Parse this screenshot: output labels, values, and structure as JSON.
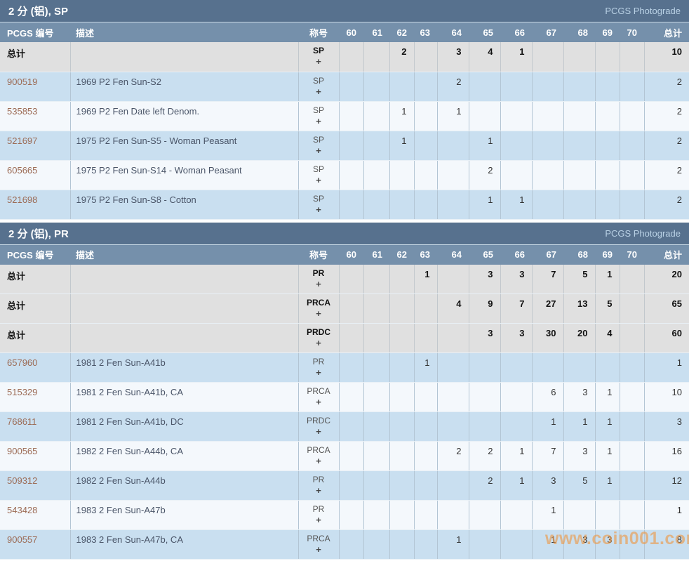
{
  "columns": {
    "pcgs": "PCGS 编号",
    "desc": "描述",
    "grade": "称号",
    "grades": [
      "60",
      "61",
      "62",
      "63",
      "64",
      "65",
      "66",
      "67",
      "68",
      "69",
      "70"
    ],
    "total": "总计"
  },
  "photograde_label": "PCGS Photograde",
  "watermark": "www.coin001.com",
  "colors": {
    "section_header_bg": "#57718e",
    "column_header_bg": "#7590ab",
    "total_row_bg": "#e0e0e0",
    "row_blue_bg": "#c9dff0",
    "row_white_bg": "#f4f8fc",
    "pcgs_link": "#9c6b55",
    "watermark": "#ed9845"
  },
  "sections": [
    {
      "title": "2 分 (铝), SP",
      "rows": [
        {
          "pcgs": "总计",
          "total_row": true,
          "desc": "",
          "grade": "SP",
          "plus": "+",
          "values": [
            "",
            "",
            "2",
            "",
            "3",
            "4",
            "1",
            "",
            "",
            "",
            ""
          ],
          "total": "10"
        },
        {
          "pcgs": "900519",
          "total_row": false,
          "desc": "1969 P2 Fen Sun-S2",
          "grade": "SP",
          "plus": "+",
          "values": [
            "",
            "",
            "",
            "",
            "2",
            "",
            "",
            "",
            "",
            "",
            ""
          ],
          "total": "2"
        },
        {
          "pcgs": "535853",
          "total_row": false,
          "desc": "1969 P2 Fen Date left Denom.",
          "grade": "SP",
          "plus": "+",
          "values": [
            "",
            "",
            "1",
            "",
            "1",
            "",
            "",
            "",
            "",
            "",
            ""
          ],
          "total": "2"
        },
        {
          "pcgs": "521697",
          "total_row": false,
          "desc": "1975 P2 Fen Sun-S5 - Woman Peasant",
          "grade": "SP",
          "plus": "+",
          "values": [
            "",
            "",
            "1",
            "",
            "",
            "1",
            "",
            "",
            "",
            "",
            ""
          ],
          "total": "2"
        },
        {
          "pcgs": "605665",
          "total_row": false,
          "desc": "1975 P2 Fen Sun-S14 - Woman Peasant",
          "grade": "SP",
          "plus": "+",
          "values": [
            "",
            "",
            "",
            "",
            "",
            "2",
            "",
            "",
            "",
            "",
            ""
          ],
          "total": "2"
        },
        {
          "pcgs": "521698",
          "total_row": false,
          "desc": "1975 P2 Fen Sun-S8 - Cotton",
          "grade": "SP",
          "plus": "+",
          "values": [
            "",
            "",
            "",
            "",
            "",
            "1",
            "1",
            "",
            "",
            "",
            ""
          ],
          "total": "2"
        }
      ]
    },
    {
      "title": "2 分 (铝), PR",
      "rows": [
        {
          "pcgs": "总计",
          "total_row": true,
          "desc": "",
          "grade": "PR",
          "plus": "+",
          "values": [
            "",
            "",
            "",
            "1",
            "",
            "3",
            "3",
            "7",
            "5",
            "1",
            ""
          ],
          "total": "20"
        },
        {
          "pcgs": "总计",
          "total_row": true,
          "desc": "",
          "grade": "PRCA",
          "plus": "+",
          "values": [
            "",
            "",
            "",
            "",
            "4",
            "9",
            "7",
            "27",
            "13",
            "5",
            ""
          ],
          "total": "65"
        },
        {
          "pcgs": "总计",
          "total_row": true,
          "desc": "",
          "grade": "PRDC",
          "plus": "+",
          "values": [
            "",
            "",
            "",
            "",
            "",
            "3",
            "3",
            "30",
            "20",
            "4",
            ""
          ],
          "total": "60"
        },
        {
          "pcgs": "657960",
          "total_row": false,
          "desc": "1981 2 Fen Sun-A41b",
          "grade": "PR",
          "plus": "+",
          "values": [
            "",
            "",
            "",
            "1",
            "",
            "",
            "",
            "",
            "",
            "",
            ""
          ],
          "total": "1"
        },
        {
          "pcgs": "515329",
          "total_row": false,
          "desc": "1981 2 Fen Sun-A41b, CA",
          "grade": "PRCA",
          "plus": "+",
          "values": [
            "",
            "",
            "",
            "",
            "",
            "",
            "",
            "6",
            "3",
            "1",
            ""
          ],
          "total": "10"
        },
        {
          "pcgs": "768611",
          "total_row": false,
          "desc": "1981 2 Fen Sun-A41b, DC",
          "grade": "PRDC",
          "plus": "+",
          "values": [
            "",
            "",
            "",
            "",
            "",
            "",
            "",
            "1",
            "1",
            "1",
            ""
          ],
          "total": "3"
        },
        {
          "pcgs": "900565",
          "total_row": false,
          "desc": "1982 2 Fen Sun-A44b, CA",
          "grade": "PRCA",
          "plus": "+",
          "values": [
            "",
            "",
            "",
            "",
            "2",
            "2",
            "1",
            "7",
            "3",
            "1",
            ""
          ],
          "total": "16"
        },
        {
          "pcgs": "509312",
          "total_row": false,
          "desc": "1982 2 Fen Sun-A44b",
          "grade": "PR",
          "plus": "+",
          "values": [
            "",
            "",
            "",
            "",
            "",
            "2",
            "1",
            "3",
            "5",
            "1",
            ""
          ],
          "total": "12"
        },
        {
          "pcgs": "543428",
          "total_row": false,
          "desc": "1983 2 Fen Sun-A47b",
          "grade": "PR",
          "plus": "+",
          "values": [
            "",
            "",
            "",
            "",
            "",
            "",
            "",
            "1",
            "",
            "",
            ""
          ],
          "total": "1"
        },
        {
          "pcgs": "900557",
          "total_row": false,
          "desc": "1983 2 Fen Sun-A47b, CA",
          "grade": "PRCA",
          "plus": "+",
          "values": [
            "",
            "",
            "",
            "",
            "1",
            "",
            "",
            "1",
            "3",
            "3",
            ""
          ],
          "total": "8"
        }
      ]
    }
  ]
}
